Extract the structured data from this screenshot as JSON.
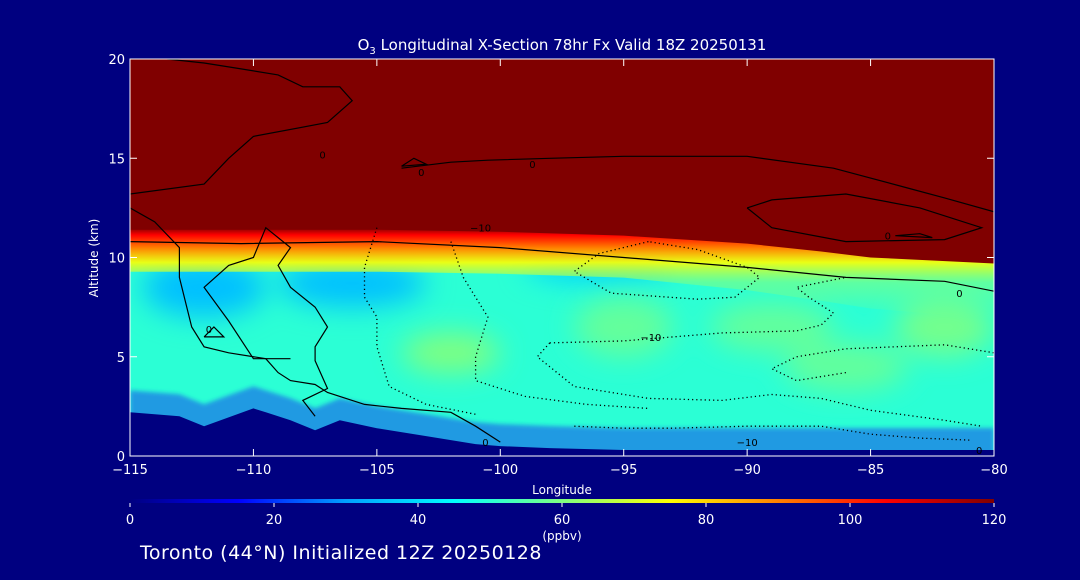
{
  "chart_data": {
    "type": "heatmap",
    "title_prefix": "O",
    "title_sub": "3",
    "title_rest": " Longitudinal X-Section 78hr  Fx Valid 18Z 20250131",
    "xlabel": "Longitude",
    "ylabel": "Altitude (km)",
    "xlim": [
      -115,
      -80
    ],
    "ylim": [
      0,
      20
    ],
    "x_ticks": [
      -115,
      -110,
      -105,
      -100,
      -95,
      -90,
      -85,
      -80
    ],
    "x_tick_labels": [
      "−115",
      "−110",
      "−105",
      "−100",
      "−95",
      "−90",
      "−85",
      "−80"
    ],
    "y_ticks": [
      0,
      5,
      10,
      15,
      20
    ],
    "y_tick_labels": [
      "0",
      "5",
      "10",
      "15",
      "20"
    ],
    "colorbar": {
      "min": 0,
      "max": 120,
      "ticks": [
        0,
        20,
        40,
        60,
        80,
        100,
        120
      ],
      "tick_labels": [
        "0",
        "20",
        "40",
        "60",
        "80",
        "100",
        "120"
      ],
      "unit": "(ppbv)",
      "colors": [
        "#000080",
        "#0000ff",
        "#00a0ff",
        "#00ffff",
        "#80ff80",
        "#ffff00",
        "#ff8000",
        "#ff0000",
        "#800000"
      ]
    },
    "stratosphere_value": 120,
    "background_value": 50,
    "tropopause_km": [
      [
        -115,
        11.4
      ],
      [
        -110,
        11.4
      ],
      [
        -105,
        11.4
      ],
      [
        -100,
        11.3
      ],
      [
        -95,
        11.1
      ],
      [
        -90,
        10.7
      ],
      [
        -87,
        10.3
      ],
      [
        -85,
        10.0
      ],
      [
        -80,
        9.7
      ]
    ],
    "surface_km": [
      [
        -115,
        2.2
      ],
      [
        -113,
        2.0
      ],
      [
        -112,
        1.5
      ],
      [
        -110,
        2.4
      ],
      [
        -109.5,
        2.2
      ],
      [
        -108.5,
        1.8
      ],
      [
        -107.5,
        1.3
      ],
      [
        -106.5,
        1.8
      ],
      [
        -105,
        1.4
      ],
      [
        -103,
        1.0
      ],
      [
        -101,
        0.6
      ],
      [
        -100,
        0.5
      ],
      [
        -98,
        0.4
      ],
      [
        -95,
        0.3
      ],
      [
        -90,
        0.3
      ],
      [
        -85,
        0.3
      ],
      [
        -80,
        0.3
      ]
    ],
    "low_patches": [
      {
        "x": -112,
        "y": 8.5,
        "rx": 2.5,
        "ry": 1.5,
        "value": 35
      },
      {
        "x": -106,
        "y": 8.7,
        "rx": 3.0,
        "ry": 1.2,
        "value": 35
      },
      {
        "x": -96,
        "y": 9.6,
        "rx": 3.0,
        "ry": 0.8,
        "value": 38
      }
    ],
    "high_patches": [
      {
        "x": -102,
        "y": 5.2,
        "rx": 2.0,
        "ry": 1.0,
        "value": 62
      },
      {
        "x": -95,
        "y": 6.5,
        "rx": 2.0,
        "ry": 1.5,
        "value": 58
      },
      {
        "x": -89,
        "y": 6.5,
        "rx": 2.5,
        "ry": 1.2,
        "value": 58
      },
      {
        "x": -86,
        "y": 4.5,
        "rx": 2.5,
        "ry": 1.2,
        "value": 58
      },
      {
        "x": -82,
        "y": 6.5,
        "rx": 2.0,
        "ry": 1.5,
        "value": 60
      }
    ],
    "contours_solid": [
      [
        [
          -113.5,
          20
        ],
        [
          -112,
          19.8
        ],
        [
          -110.5,
          19.5
        ],
        [
          -109,
          19.2
        ],
        [
          -108,
          18.6
        ],
        [
          -106.5,
          18.6
        ],
        [
          -106,
          17.9
        ],
        [
          -107,
          16.8
        ],
        [
          -110,
          16.1
        ],
        [
          -111,
          15.0
        ],
        [
          -112,
          13.7
        ],
        [
          -115,
          13.2
        ]
      ],
      [
        [
          -115,
          12.5
        ],
        [
          -114,
          11.8
        ],
        [
          -113,
          10.5
        ],
        [
          -113,
          9.0
        ],
        [
          -112.5,
          6.5
        ],
        [
          -112,
          5.5
        ],
        [
          -111,
          5.2
        ],
        [
          -109.5,
          4.9
        ],
        [
          -109,
          4.2
        ],
        [
          -108.5,
          3.8
        ],
        [
          -107.5,
          3.6
        ],
        [
          -107,
          3.2
        ],
        [
          -105.5,
          2.6
        ],
        [
          -104,
          2.4
        ],
        [
          -102,
          2.2
        ],
        [
          -101,
          1.5
        ],
        [
          -100,
          0.7
        ]
      ],
      [
        [
          -108.5,
          4.9
        ],
        [
          -110,
          4.9
        ],
        [
          -111,
          6.8
        ],
        [
          -112,
          8.5
        ],
        [
          -111,
          9.6
        ],
        [
          -110,
          10.0
        ],
        [
          -109.5,
          11.5
        ],
        [
          -108.5,
          10.5
        ],
        [
          -109,
          9.6
        ],
        [
          -108.5,
          8.5
        ],
        [
          -107.5,
          7.5
        ],
        [
          -107,
          6.5
        ],
        [
          -107.5,
          5.5
        ],
        [
          -107.5,
          4.8
        ],
        [
          -107,
          3.4
        ],
        [
          -108,
          2.8
        ],
        [
          -107.5,
          2.0
        ]
      ],
      [
        [
          -115,
          10.8
        ],
        [
          -110.5,
          10.7
        ],
        [
          -105,
          10.8
        ],
        [
          -100,
          10.5
        ],
        [
          -95,
          10.0
        ],
        [
          -90,
          9.5
        ],
        [
          -86,
          9.0
        ],
        [
          -82,
          8.8
        ],
        [
          -80,
          8.3
        ]
      ],
      [
        [
          -104,
          14.5
        ],
        [
          -102,
          14.8
        ],
        [
          -100.5,
          14.9
        ],
        [
          -98,
          15.0
        ],
        [
          -95,
          15.1
        ],
        [
          -90,
          15.1
        ],
        [
          -86.5,
          14.5
        ],
        [
          -83.5,
          13.5
        ],
        [
          -82,
          13.0
        ],
        [
          -80,
          12.3
        ]
      ],
      [
        [
          -104,
          14.6
        ],
        [
          -103.5,
          15.0
        ],
        [
          -103,
          14.7
        ],
        [
          -104,
          14.6
        ]
      ],
      [
        [
          -90,
          12.5
        ],
        [
          -89,
          12.9
        ],
        [
          -86,
          13.2
        ],
        [
          -83,
          12.5
        ],
        [
          -80.5,
          11.5
        ],
        [
          -82,
          10.9
        ],
        [
          -86,
          10.8
        ],
        [
          -89,
          11.5
        ],
        [
          -90,
          12.5
        ]
      ],
      [
        [
          -84,
          11.1
        ],
        [
          -83,
          11.2
        ],
        [
          -82.5,
          11.0
        ],
        [
          -84,
          11.1
        ]
      ],
      [
        [
          -112,
          6.0
        ],
        [
          -111.6,
          6.5
        ],
        [
          -111.2,
          6.0
        ],
        [
          -112,
          6.0
        ]
      ]
    ],
    "contours_dotted": [
      [
        [
          -105,
          11.5
        ],
        [
          -105.5,
          9.5
        ],
        [
          -105.5,
          8.0
        ],
        [
          -105,
          7.0
        ],
        [
          -105,
          5.5
        ],
        [
          -104.5,
          3.5
        ],
        [
          -103,
          2.6
        ],
        [
          -101,
          2.1
        ]
      ],
      [
        [
          -102,
          10.8
        ],
        [
          -101.5,
          9.0
        ],
        [
          -100.5,
          7.0
        ],
        [
          -101,
          5.0
        ],
        [
          -101,
          3.8
        ],
        [
          -99,
          3.0
        ],
        [
          -96.5,
          2.6
        ],
        [
          -94,
          2.4
        ]
      ],
      [
        [
          -94,
          10.8
        ],
        [
          -96,
          10.2
        ],
        [
          -97,
          9.3
        ],
        [
          -95.5,
          8.2
        ],
        [
          -92,
          7.9
        ],
        [
          -90.5,
          8.0
        ],
        [
          -89.5,
          9.0
        ],
        [
          -90,
          9.5
        ],
        [
          -92,
          10.4
        ],
        [
          -94,
          10.8
        ]
      ],
      [
        [
          -98,
          5.7
        ],
        [
          -95,
          5.8
        ],
        [
          -93,
          6.0
        ],
        [
          -91,
          6.2
        ],
        [
          -88,
          6.3
        ],
        [
          -87,
          6.6
        ],
        [
          -86.5,
          7.2
        ],
        [
          -87.5,
          8.0
        ],
        [
          -88,
          8.5
        ],
        [
          -86,
          9.0
        ]
      ],
      [
        [
          -98,
          5.7
        ],
        [
          -98.5,
          5.0
        ],
        [
          -97,
          3.5
        ],
        [
          -94,
          2.9
        ],
        [
          -91,
          2.8
        ],
        [
          -89,
          3.1
        ],
        [
          -87,
          2.9
        ],
        [
          -85,
          2.3
        ],
        [
          -82,
          1.8
        ],
        [
          -80.5,
          1.5
        ]
      ],
      [
        [
          -86,
          4.2
        ],
        [
          -88,
          3.8
        ],
        [
          -89,
          4.4
        ],
        [
          -88,
          5.0
        ],
        [
          -86,
          5.4
        ],
        [
          -84,
          5.5
        ],
        [
          -82,
          5.6
        ],
        [
          -80,
          5.2
        ]
      ],
      [
        [
          -97,
          1.5
        ],
        [
          -95,
          1.4
        ],
        [
          -93,
          1.4
        ],
        [
          -90,
          1.5
        ],
        [
          -87,
          1.5
        ],
        [
          -85,
          1.1
        ],
        [
          -83,
          0.9
        ],
        [
          -81,
          0.8
        ]
      ]
    ],
    "contour_labels": [
      {
        "text": "0",
        "x": -107.2,
        "y": 15.2
      },
      {
        "text": "0",
        "x": -103.2,
        "y": 14.3
      },
      {
        "text": "0",
        "x": -98.7,
        "y": 14.7
      },
      {
        "text": "0",
        "x": -111.8,
        "y": 6.4
      },
      {
        "text": "0",
        "x": -100.6,
        "y": 0.7
      },
      {
        "text": "0",
        "x": -84.3,
        "y": 11.1
      },
      {
        "text": "0",
        "x": -81.4,
        "y": 8.2
      },
      {
        "text": "0",
        "x": -80.6,
        "y": 0.3
      },
      {
        "text": "−10",
        "x": -100.8,
        "y": 11.5
      },
      {
        "text": "−10",
        "x": -93.9,
        "y": 6.0
      },
      {
        "text": "−10",
        "x": -90.0,
        "y": 0.7
      }
    ]
  },
  "footer": {
    "text": "Toronto (44°N) Initialized 12Z 20250128"
  }
}
